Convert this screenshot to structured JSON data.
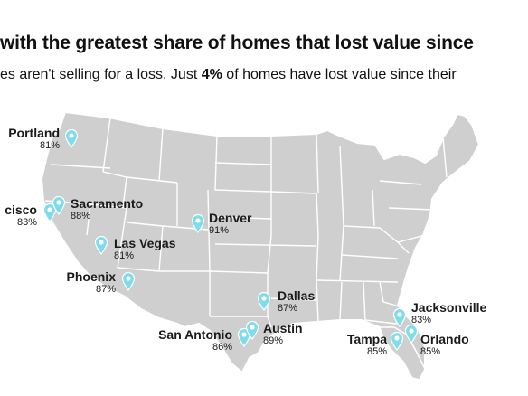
{
  "header": {
    "headline": "with the greatest share of homes that lost value since",
    "subhead_pre": "es aren't selling for a loss. Just ",
    "subhead_pct": "4%",
    "subhead_post": " of homes have lost value since their"
  },
  "map": {
    "land_color": "#cfcfcf",
    "border_color": "#ffffff",
    "pin_color": "#7fdcea",
    "pin_icon": "map-pin-icon"
  },
  "cities": [
    {
      "id": "portland",
      "name": "Portland",
      "pct": "81%"
    },
    {
      "id": "san-francisco",
      "name": "cisco",
      "pct": "83%"
    },
    {
      "id": "sacramento",
      "name": "Sacramento",
      "pct": "88%"
    },
    {
      "id": "denver",
      "name": "Denver",
      "pct": "91%"
    },
    {
      "id": "las-vegas",
      "name": "Las Vegas",
      "pct": "81%"
    },
    {
      "id": "phoenix",
      "name": "Phoenix",
      "pct": "87%"
    },
    {
      "id": "dallas",
      "name": "Dallas",
      "pct": "87%"
    },
    {
      "id": "san-antonio",
      "name": "San Antonio",
      "pct": "86%"
    },
    {
      "id": "austin",
      "name": "Austin",
      "pct": "89%"
    },
    {
      "id": "jacksonville",
      "name": "Jacksonville",
      "pct": "83%"
    },
    {
      "id": "tampa",
      "name": "Tampa",
      "pct": "85%"
    },
    {
      "id": "orlando",
      "name": "Orlando",
      "pct": "85%"
    }
  ]
}
